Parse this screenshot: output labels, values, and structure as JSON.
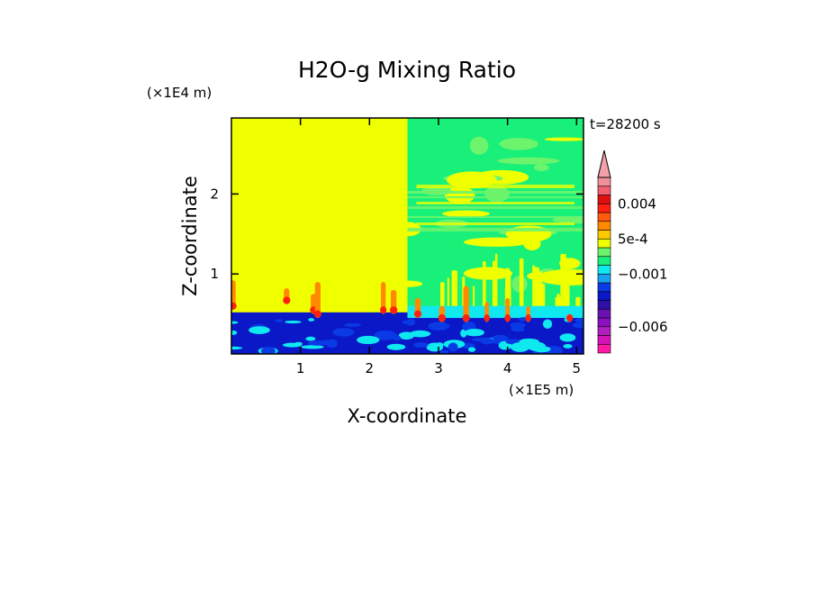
{
  "chart_data": {
    "type": "heatmap",
    "title": "H2O-g Mixing Ratio",
    "xlabel": "X-coordinate",
    "ylabel": "Z-coordinate",
    "x_unit": "(×1E5 m)",
    "y_unit": "(×1E4 m)",
    "time_label": "t=28200 s",
    "xlim": [
      0,
      5.1
    ],
    "ylim": [
      0,
      2.95
    ],
    "x_ticks": [
      1,
      2,
      3,
      4,
      5
    ],
    "y_ticks": [
      1,
      2
    ],
    "colorbar": {
      "extend": "max",
      "labels": [
        {
          "text": "0.004",
          "value": 0.004
        },
        {
          "text": "5e-4",
          "value": 0.0005
        },
        {
          "text": "−0.001",
          "value": -0.001
        },
        {
          "text": "−0.006",
          "value": -0.006
        }
      ],
      "bands": [
        {
          "lo": -0.009,
          "hi": -0.008,
          "color": "#ff1aa8"
        },
        {
          "lo": -0.008,
          "hi": -0.007,
          "color": "#d414b8"
        },
        {
          "lo": -0.007,
          "hi": -0.006,
          "color": "#b01fbf"
        },
        {
          "lo": -0.006,
          "hi": -0.005,
          "color": "#8a10c0"
        },
        {
          "lo": -0.005,
          "hi": -0.004,
          "color": "#6a12b0"
        },
        {
          "lo": -0.004,
          "hi": -0.003,
          "color": "#2e10a8"
        },
        {
          "lo": -0.003,
          "hi": -0.002,
          "color": "#0a18c8"
        },
        {
          "lo": -0.002,
          "hi": -0.0015,
          "color": "#0a3ae6"
        },
        {
          "lo": -0.0015,
          "hi": -0.001,
          "color": "#1aa0f0"
        },
        {
          "lo": -0.001,
          "hi": -0.0005,
          "color": "#10e8f0"
        },
        {
          "lo": -0.0005,
          "hi": 0,
          "color": "#18f07a"
        },
        {
          "lo": 0,
          "hi": 0.00025,
          "color": "#6cf46c"
        },
        {
          "lo": 0.00025,
          "hi": 0.0005,
          "color": "#f0ff00"
        },
        {
          "lo": 0.0005,
          "hi": 0.001,
          "color": "#ffc800"
        },
        {
          "lo": 0.001,
          "hi": 0.002,
          "color": "#ff8a00"
        },
        {
          "lo": 0.002,
          "hi": 0.003,
          "color": "#ff5a10"
        },
        {
          "lo": 0.003,
          "hi": 0.004,
          "color": "#ff2010"
        },
        {
          "lo": 0.004,
          "hi": 0.005,
          "color": "#e01010"
        },
        {
          "lo": 0.005,
          "hi": 0.006,
          "color": "#f06070"
        },
        {
          "lo": 0.006,
          "hi": 0.007,
          "color": "#f09098"
        }
      ],
      "extend_color": "#f4a0a8"
    },
    "regions": [
      {
        "name": "upper-left",
        "x": [
          0,
          2.55
        ],
        "z": [
          0.5,
          2.95
        ],
        "value": 0.0003
      },
      {
        "name": "upper-right",
        "x": [
          2.55,
          5.1
        ],
        "z": [
          0.6,
          2.95
        ],
        "value": 0.0001
      },
      {
        "name": "boundary-layer",
        "x": [
          0,
          5.1
        ],
        "z": [
          0,
          0.55
        ],
        "value": -0.002
      }
    ]
  },
  "colors": {
    "background": "#ffffff",
    "frame": "#000000",
    "yellow": "#f0ff00",
    "green": "#18f07a",
    "lightgreen": "#6cf46c",
    "cyan": "#10e8f0",
    "blue": "#0a3ae6",
    "darkblue": "#0a18c8",
    "orange": "#ff8a00",
    "red": "#ff2010"
  }
}
